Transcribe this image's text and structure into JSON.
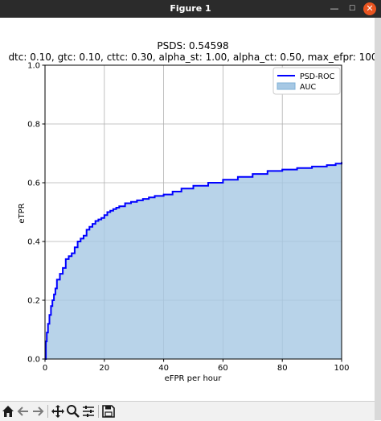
{
  "window": {
    "title": "Figure 1",
    "controls": {
      "minimize": "—",
      "maximize": "☐",
      "close": "✕"
    }
  },
  "toolbar": {
    "tools": [
      "home-icon",
      "back-icon",
      "forward-icon",
      "pan-icon",
      "zoom-icon",
      "configure-subplots-icon",
      "save-icon"
    ]
  },
  "colors": {
    "roc_line": "#0000ff",
    "auc_fill": "#a6c8e4",
    "titlebar": "#2b2b2b",
    "close_button": "#e95420"
  },
  "chart_data": {
    "type": "area",
    "title": "PSDS: 0.54598",
    "subtitle": "dtc: 0.10, gtc: 0.10, cttc: 0.30, alpha_st: 1.00, alpha_ct: 0.50, max_efpr: 100",
    "xlabel": "eFPR per hour",
    "ylabel": "eTPR",
    "xlim": [
      0,
      100
    ],
    "ylim": [
      0,
      1
    ],
    "xticks": [
      "0",
      "20",
      "40",
      "60",
      "80",
      "100"
    ],
    "yticks": [
      "0.0",
      "0.2",
      "0.4",
      "0.6",
      "0.8",
      "1.0"
    ],
    "grid": true,
    "legend_position": "top-right",
    "legend": [
      "PSD-ROC",
      "AUC"
    ],
    "series": [
      {
        "name": "PSD-ROC",
        "x": [
          0,
          0.3,
          0.6,
          1,
          1.5,
          2,
          2.5,
          3,
          3.5,
          4,
          5,
          6,
          7,
          8,
          9,
          10,
          11,
          12,
          13,
          14,
          15,
          16,
          17,
          18,
          19,
          20,
          21,
          22,
          23,
          24,
          25,
          27,
          29,
          31,
          33,
          35,
          37,
          40,
          43,
          46,
          50,
          55,
          60,
          65,
          70,
          75,
          80,
          85,
          90,
          95,
          98,
          100
        ],
        "y": [
          0.0,
          0.06,
          0.09,
          0.12,
          0.15,
          0.18,
          0.2,
          0.22,
          0.24,
          0.27,
          0.29,
          0.31,
          0.34,
          0.35,
          0.36,
          0.38,
          0.4,
          0.41,
          0.42,
          0.44,
          0.45,
          0.46,
          0.47,
          0.475,
          0.48,
          0.49,
          0.5,
          0.505,
          0.51,
          0.515,
          0.52,
          0.53,
          0.535,
          0.54,
          0.545,
          0.55,
          0.555,
          0.56,
          0.57,
          0.58,
          0.59,
          0.6,
          0.61,
          0.62,
          0.63,
          0.64,
          0.645,
          0.65,
          0.655,
          0.66,
          0.665,
          0.67
        ]
      }
    ],
    "fill_series": "AUC"
  }
}
